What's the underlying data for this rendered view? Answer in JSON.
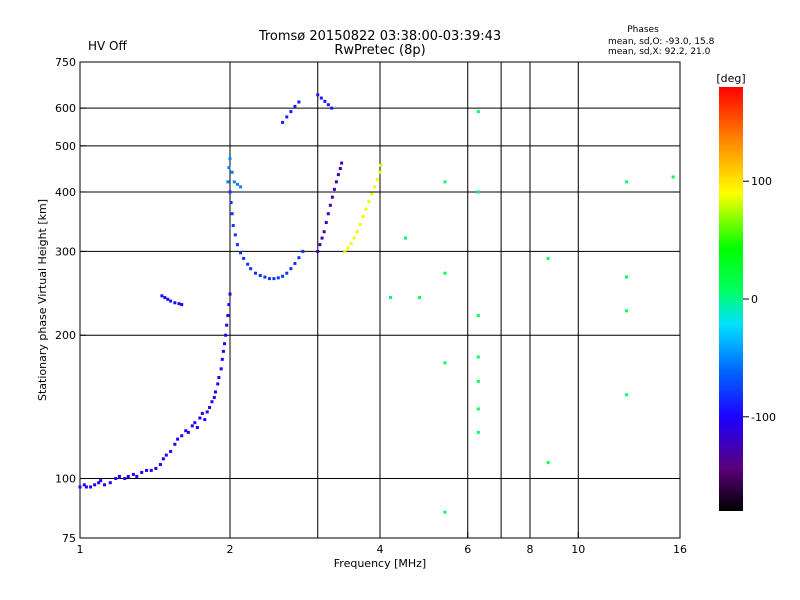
{
  "header": {
    "title": "Tromsø 20150822 03:38:00-03:39:43",
    "subtitle": "RwPretec (8p)",
    "status": "HV Off",
    "status_color": "#cc0000",
    "stats_title": "Phases",
    "stats_line1": "mean, sd,O: -93.0, 15.8",
    "stats_line2": "mean, sd,X:  92.2, 21.0"
  },
  "colorbar": {
    "unit_label": "[deg]",
    "ticks": [
      {
        "label": "100",
        "value": 100
      },
      {
        "label": "0",
        "value": 0
      },
      {
        "label": "-100",
        "value": -100
      }
    ]
  },
  "chart_data": {
    "type": "scatter",
    "title": "Tromsø 20150822 03:38:00-03:39:43",
    "subtitle": "RwPretec (8p)",
    "xlabel": "Frequency [MHz]",
    "ylabel": "Stationary phase Virtual Height [km]",
    "x_scale": "log",
    "y_scale": "log",
    "xlim": [
      1,
      16
    ],
    "ylim": [
      75,
      750
    ],
    "x_ticks": [
      {
        "label": "1",
        "value": 1
      },
      {
        "label": "2",
        "value": 2
      },
      {
        "label": "4",
        "value": 4
      },
      {
        "label": "6",
        "value": 6
      },
      {
        "label": "8",
        "value": 8
      },
      {
        "label": "10",
        "value": 10
      },
      {
        "label": "16",
        "value": 16
      }
    ],
    "x_grid": [
      2,
      3,
      4,
      6,
      7,
      8,
      10
    ],
    "y_ticks": [
      {
        "label": "75",
        "value": 75
      },
      {
        "label": "100",
        "value": 100
      },
      {
        "label": "200",
        "value": 200
      },
      {
        "label": "300",
        "value": 300
      },
      {
        "label": "400",
        "value": 400
      },
      {
        "label": "500",
        "value": 500
      },
      {
        "label": "600",
        "value": 600
      },
      {
        "label": "750",
        "value": 750
      }
    ],
    "grid": true,
    "color_scale": {
      "label": "[deg]",
      "min": -180,
      "max": 180,
      "palette": "rainbow (black=-180, blue=-100, cyan=-20, green=0, yellow=100, red=180)"
    },
    "series": [
      {
        "trace": "lower E/F1 trace (O-mode)",
        "phase": -100,
        "points": [
          [
            1.0,
            96
          ],
          [
            1.02,
            97
          ],
          [
            1.03,
            96
          ],
          [
            1.05,
            96
          ],
          [
            1.07,
            97
          ],
          [
            1.09,
            98
          ],
          [
            1.1,
            99
          ],
          [
            1.12,
            97
          ],
          [
            1.15,
            98
          ],
          [
            1.18,
            100
          ],
          [
            1.2,
            101
          ],
          [
            1.23,
            100
          ],
          [
            1.25,
            101
          ],
          [
            1.28,
            102
          ],
          [
            1.3,
            101
          ],
          [
            1.33,
            103
          ],
          [
            1.36,
            104
          ],
          [
            1.39,
            104
          ],
          [
            1.42,
            105
          ],
          [
            1.45,
            107
          ],
          [
            1.47,
            110
          ],
          [
            1.49,
            112
          ],
          [
            1.52,
            114
          ],
          [
            1.55,
            118
          ],
          [
            1.57,
            121
          ],
          [
            1.6,
            123
          ],
          [
            1.63,
            126
          ],
          [
            1.65,
            125
          ],
          [
            1.68,
            129
          ],
          [
            1.7,
            131
          ],
          [
            1.72,
            128
          ],
          [
            1.74,
            134
          ],
          [
            1.76,
            137
          ],
          [
            1.78,
            133
          ],
          [
            1.8,
            138
          ],
          [
            1.82,
            141
          ],
          [
            1.84,
            145
          ],
          [
            1.86,
            148
          ],
          [
            1.87,
            152
          ],
          [
            1.89,
            158
          ],
          [
            1.9,
            163
          ],
          [
            1.92,
            170
          ],
          [
            1.93,
            178
          ],
          [
            1.94,
            185
          ],
          [
            1.95,
            192
          ],
          [
            1.96,
            200
          ],
          [
            1.97,
            210
          ],
          [
            1.98,
            220
          ],
          [
            1.99,
            232
          ],
          [
            2.0,
            244
          ]
        ]
      },
      {
        "trace": "F2 trace (O-mode)",
        "phase": -80,
        "points": [
          [
            2.0,
            400
          ],
          [
            2.01,
            380
          ],
          [
            2.02,
            360
          ],
          [
            2.03,
            340
          ],
          [
            2.05,
            325
          ],
          [
            2.07,
            310
          ],
          [
            2.1,
            298
          ],
          [
            2.13,
            290
          ],
          [
            2.17,
            282
          ],
          [
            2.2,
            276
          ],
          [
            2.25,
            270
          ],
          [
            2.3,
            267
          ],
          [
            2.35,
            265
          ],
          [
            2.4,
            263
          ],
          [
            2.45,
            263
          ],
          [
            2.5,
            264
          ],
          [
            2.55,
            266
          ],
          [
            2.6,
            270
          ],
          [
            2.65,
            276
          ],
          [
            2.7,
            283
          ],
          [
            2.75,
            291
          ],
          [
            2.8,
            300
          ]
        ]
      },
      {
        "trace": "cusp near 2 MHz",
        "phase": -50,
        "points": [
          [
            1.98,
            420
          ],
          [
            1.99,
            450
          ],
          [
            2.0,
            470
          ],
          [
            2.02,
            440
          ],
          [
            2.04,
            420
          ],
          [
            2.07,
            415
          ],
          [
            2.1,
            410
          ]
        ]
      },
      {
        "trace": "isolated echoes near 1.5 MHz",
        "phase": -95,
        "points": [
          [
            1.46,
            242
          ],
          [
            1.48,
            240
          ],
          [
            1.5,
            238
          ],
          [
            1.52,
            236
          ],
          [
            1.55,
            234
          ],
          [
            1.58,
            233
          ],
          [
            1.6,
            232
          ]
        ]
      },
      {
        "trace": "O-mode upper trace",
        "phase": -120,
        "points": [
          [
            3.0,
            300
          ],
          [
            3.03,
            310
          ],
          [
            3.06,
            320
          ],
          [
            3.09,
            330
          ],
          [
            3.12,
            345
          ],
          [
            3.15,
            360
          ],
          [
            3.18,
            375
          ],
          [
            3.21,
            390
          ],
          [
            3.24,
            405
          ],
          [
            3.27,
            420
          ],
          [
            3.3,
            435
          ],
          [
            3.33,
            448
          ],
          [
            3.35,
            460
          ]
        ]
      },
      {
        "trace": "X-mode trace",
        "phase": 95,
        "points": [
          [
            3.4,
            300
          ],
          [
            3.45,
            305
          ],
          [
            3.5,
            312
          ],
          [
            3.55,
            320
          ],
          [
            3.6,
            330
          ],
          [
            3.65,
            342
          ],
          [
            3.7,
            355
          ],
          [
            3.75,
            368
          ],
          [
            3.8,
            382
          ],
          [
            3.85,
            396
          ],
          [
            3.9,
            410
          ],
          [
            3.95,
            425
          ],
          [
            4.0,
            440
          ],
          [
            4.02,
            455
          ]
        ]
      },
      {
        "trace": "high echoes near 2.8-3.2 MHz",
        "phase": -90,
        "points": [
          [
            2.55,
            560
          ],
          [
            2.6,
            575
          ],
          [
            2.65,
            590
          ],
          [
            2.7,
            605
          ],
          [
            2.75,
            618
          ],
          [
            3.0,
            640
          ],
          [
            3.05,
            630
          ],
          [
            3.1,
            620
          ],
          [
            3.15,
            610
          ],
          [
            3.2,
            600
          ]
        ]
      },
      {
        "trace": "scattered echoes",
        "phase": 0,
        "points": [
          [
            6.3,
            590
          ],
          [
            6.3,
            400
          ],
          [
            6.3,
            220
          ],
          [
            6.3,
            180
          ],
          [
            6.3,
            160
          ],
          [
            6.3,
            140
          ],
          [
            6.3,
            125
          ],
          [
            5.4,
            420
          ],
          [
            5.4,
            270
          ],
          [
            5.4,
            175
          ],
          [
            5.4,
            85
          ],
          [
            8.7,
            290
          ],
          [
            8.7,
            108
          ],
          [
            12.5,
            420
          ],
          [
            12.5,
            265
          ],
          [
            12.5,
            225
          ],
          [
            12.5,
            150
          ],
          [
            15.5,
            430
          ],
          [
            4.2,
            240
          ],
          [
            4.5,
            320
          ],
          [
            4.8,
            240
          ]
        ]
      }
    ]
  }
}
